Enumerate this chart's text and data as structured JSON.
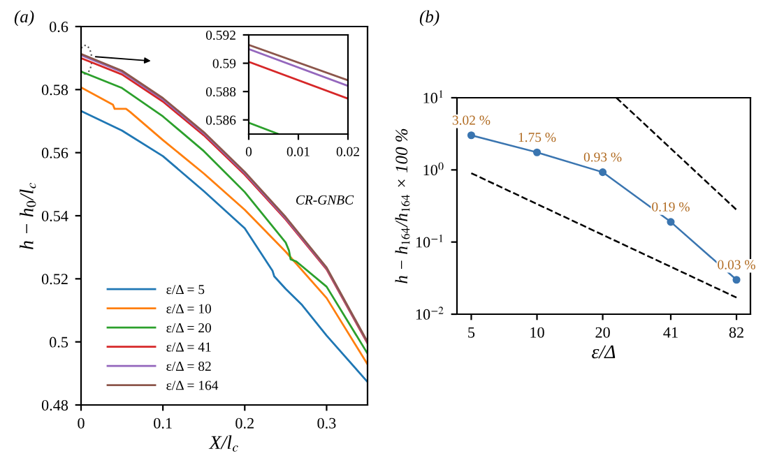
{
  "chart_data": [
    {
      "type": "line",
      "title": "(a)",
      "xlabel": "X/l$_{c}$",
      "ylabel": "h − h$_{0}$/l$_{c}$",
      "xlim": [
        0,
        0.35
      ],
      "ylim": [
        0.48,
        0.6
      ],
      "xticks": [
        0,
        0.1,
        0.2,
        0.3
      ],
      "yticks": [
        0.48,
        0.5,
        0.52,
        0.54,
        0.56,
        0.58,
        0.6
      ],
      "grid": false,
      "legend": "bottom left",
      "annotations": [
        "CR-GNBC"
      ],
      "series": [
        {
          "name": "ε/Δ = 5",
          "color": "#1f77b4",
          "x": [
            0,
            0.05,
            0.1,
            0.15,
            0.2,
            0.234,
            0.236,
            0.25,
            0.27,
            0.3,
            0.35
          ],
          "values": [
            0.5732,
            0.567,
            0.5589,
            0.5478,
            0.536,
            0.5225,
            0.5208,
            0.5168,
            0.5117,
            0.502,
            0.4873
          ]
        },
        {
          "name": "ε/Δ = 10",
          "color": "#ff7f0e",
          "x": [
            0,
            0.039,
            0.041,
            0.055,
            0.06,
            0.1,
            0.15,
            0.2,
            0.25,
            0.3,
            0.35
          ],
          "values": [
            0.5807,
            0.5752,
            0.5739,
            0.5739,
            0.5729,
            0.564,
            0.5534,
            0.5419,
            0.5286,
            0.5139,
            0.4929
          ]
        },
        {
          "name": "ε/Δ = 20",
          "color": "#2ca02c",
          "x": [
            0,
            0.05,
            0.1,
            0.15,
            0.2,
            0.25,
            0.254,
            0.256,
            0.263,
            0.3,
            0.35
          ],
          "values": [
            0.5857,
            0.5805,
            0.5715,
            0.5605,
            0.5475,
            0.5315,
            0.529,
            0.5262,
            0.5255,
            0.5175,
            0.4963
          ]
        },
        {
          "name": "ε/Δ = 41",
          "color": "#d62728",
          "x": [
            0,
            0.05,
            0.1,
            0.15,
            0.2,
            0.25,
            0.3,
            0.35
          ],
          "values": [
            0.59,
            0.5848,
            0.5762,
            0.5655,
            0.553,
            0.5388,
            0.523,
            0.4995
          ]
        },
        {
          "name": "ε/Δ = 82",
          "color": "#9467bd",
          "x": [
            0,
            0.05,
            0.1,
            0.15,
            0.2,
            0.25,
            0.3,
            0.35
          ],
          "values": [
            0.5909,
            0.5856,
            0.5769,
            0.5661,
            0.5535,
            0.5392,
            0.5233,
            0.4998
          ]
        },
        {
          "name": "ε/Δ = 164",
          "color": "#8c564b",
          "x": [
            0,
            0.05,
            0.1,
            0.15,
            0.2,
            0.25,
            0.3,
            0.35
          ],
          "values": [
            0.5913,
            0.586,
            0.5773,
            0.5665,
            0.5539,
            0.5396,
            0.5236,
            0.5
          ]
        }
      ]
    },
    {
      "type": "line",
      "xlim": [
        0,
        0.02
      ],
      "ylim": [
        0.585,
        0.592
      ],
      "xticks": [
        0,
        0.01,
        0.02
      ],
      "yticks": [
        0.586,
        0.588,
        0.59,
        0.592
      ],
      "grid": false,
      "series": [
        {
          "color": "#2ca02c",
          "x": [
            0,
            0.006
          ],
          "values": [
            0.5858,
            0.585
          ]
        },
        {
          "color": "#d62728",
          "x": [
            0,
            0.02
          ],
          "values": [
            0.5901,
            0.5875
          ]
        },
        {
          "color": "#9467bd",
          "x": [
            0,
            0.02
          ],
          "values": [
            0.591,
            0.5884
          ]
        },
        {
          "color": "#8c564b",
          "x": [
            0,
            0.02
          ],
          "values": [
            0.5913,
            0.5888
          ]
        }
      ]
    },
    {
      "type": "line",
      "title": "(b)",
      "xlabel": "ε/Δ",
      "ylabel": "h − h$_{164}$/h$_{164}$ × 100 %",
      "log": "xy",
      "xlim": [
        4.3,
        95
      ],
      "ylim": [
        0.01,
        10
      ],
      "xticks": [
        5,
        10,
        20,
        41,
        82
      ],
      "yticks": [
        {
          "value": 0.01,
          "label": "10$^{−2}$"
        },
        {
          "value": 0.1,
          "label": "10$^{−1}$"
        },
        {
          "value": 1,
          "label": "10$^{0}$"
        },
        {
          "value": 10,
          "label": "10$^{1}$"
        }
      ],
      "grid": false,
      "series": [
        {
          "color": "#3a75b0",
          "marker": "circle",
          "x": [
            5,
            10,
            20,
            41,
            82
          ],
          "values": [
            3.02,
            1.75,
            0.93,
            0.19,
            0.03
          ],
          "value_labels": [
            "3.02 %",
            "1.75 %",
            "0.93 %",
            "0.19 %",
            "0.03 %"
          ]
        },
        {
          "color": "#000000",
          "line_style": "dashed",
          "x": [
            23.1,
            82
          ],
          "values": [
            10,
            0.28
          ]
        },
        {
          "color": "#000000",
          "line_style": "dashed",
          "x": [
            5,
            82
          ],
          "values": [
            0.9,
            0.017
          ]
        }
      ]
    }
  ]
}
